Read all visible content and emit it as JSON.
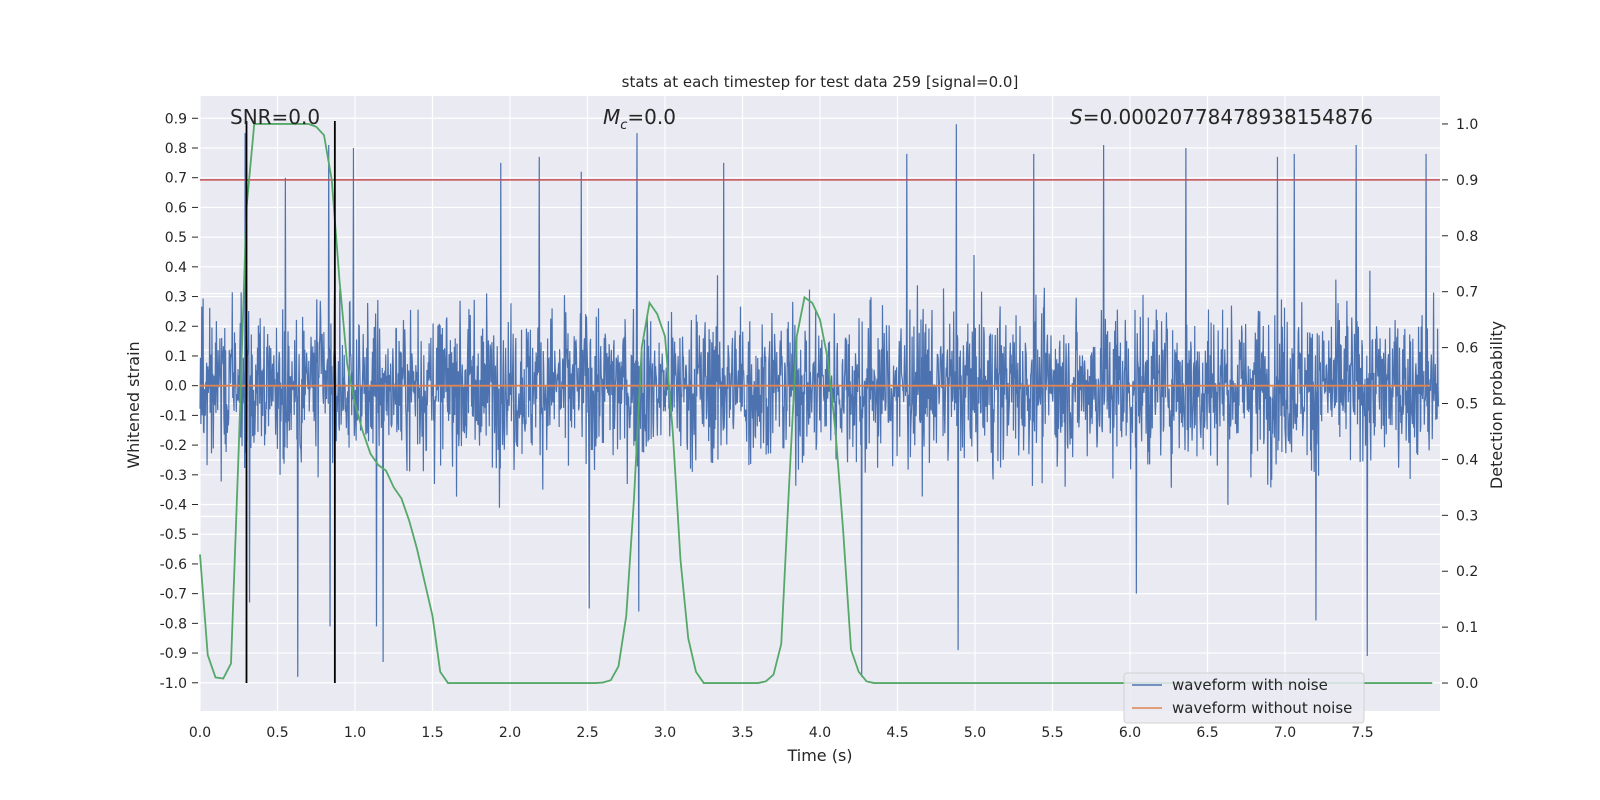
{
  "chart_data": {
    "type": "line",
    "title": "stats at each timestep for test data 259 [signal=0.0]",
    "xlabel": "Time (s)",
    "ylabel_left": "Whitened strain",
    "ylabel_right": "Detection probability",
    "xlim": [
      0.0,
      8.0
    ],
    "ylim_left": [
      -1.095,
      0.975
    ],
    "ylim_right": [
      -0.05,
      1.05
    ],
    "x_ticks": [
      "0.0",
      "0.5",
      "1.0",
      "1.5",
      "2.0",
      "2.5",
      "3.0",
      "3.5",
      "4.0",
      "4.5",
      "5.0",
      "5.5",
      "6.0",
      "6.5",
      "7.0",
      "7.5"
    ],
    "y_ticks_left": [
      "0.9",
      "0.8",
      "0.7",
      "0.6",
      "0.5",
      "0.4",
      "0.3",
      "0.2",
      "0.1",
      "0.0",
      "-0.1",
      "-0.2",
      "-0.3",
      "-0.4",
      "-0.5",
      "-0.6",
      "-0.7",
      "-0.8",
      "-0.9",
      "-1.0"
    ],
    "y_ticks_right": [
      "1.0",
      "0.9",
      "0.8",
      "0.7",
      "0.6",
      "0.5",
      "0.4",
      "0.3",
      "0.2",
      "0.1",
      "0.0"
    ],
    "annotations": {
      "snr": "SNR=0.0",
      "mc": "=0.0",
      "mc_symbol": "M",
      "mc_subscript": "c",
      "s": "=0.00020778478938154876",
      "s_symbol": "S"
    },
    "threshold": {
      "axis": "right",
      "value": 0.9,
      "color": "#c44e52"
    },
    "vertical_lines": [
      0.3,
      0.87
    ],
    "horizontal_white_lines_left_axis": [
      0.31,
      0.12,
      -0.06,
      -0.25,
      -0.44
    ],
    "legend": {
      "location": "lower right",
      "entries": [
        {
          "label": "waveform with noise",
          "color": "#4c72b0"
        },
        {
          "label": "waveform without noise",
          "color": "#dd8452"
        }
      ]
    },
    "series": [
      {
        "name": "waveform with noise",
        "axis": "left",
        "color": "#4c72b0",
        "x_range": [
          0.0,
          7.99
        ],
        "description": "dense whitened noise roughly within -0.6 to 0.6 with spikes",
        "spike_highs": [
          [
            0.29,
            0.85
          ],
          [
            0.55,
            0.7
          ],
          [
            0.83,
            0.81
          ],
          [
            0.99,
            0.8
          ],
          [
            1.94,
            0.75
          ],
          [
            2.19,
            0.77
          ],
          [
            2.46,
            0.72
          ],
          [
            2.82,
            0.85
          ],
          [
            3.38,
            0.75
          ],
          [
            4.56,
            0.78
          ],
          [
            4.88,
            0.88
          ],
          [
            5.38,
            0.78
          ],
          [
            5.83,
            0.81
          ],
          [
            6.36,
            0.8
          ],
          [
            6.95,
            0.77
          ],
          [
            7.06,
            0.78
          ],
          [
            7.46,
            0.81
          ],
          [
            7.91,
            0.78
          ]
        ],
        "spike_lows": [
          [
            0.32,
            -0.73
          ],
          [
            0.63,
            -0.98
          ],
          [
            0.84,
            -0.81
          ],
          [
            1.18,
            -0.93
          ],
          [
            1.14,
            -0.81
          ],
          [
            2.51,
            -0.75
          ],
          [
            2.83,
            -0.76
          ],
          [
            4.27,
            -0.98
          ],
          [
            4.89,
            -0.89
          ],
          [
            6.04,
            -0.7
          ],
          [
            7.2,
            -0.79
          ],
          [
            7.53,
            -0.91
          ]
        ]
      },
      {
        "name": "waveform without noise",
        "axis": "left",
        "color": "#dd8452",
        "x": [
          0.0,
          8.0
        ],
        "y": [
          0.0,
          0.0
        ]
      },
      {
        "name": "detection probability",
        "axis": "right",
        "color": "#55a868",
        "x": [
          0.0,
          0.05,
          0.1,
          0.15,
          0.2,
          0.25,
          0.3,
          0.35,
          0.4,
          0.45,
          0.5,
          0.55,
          0.6,
          0.65,
          0.7,
          0.75,
          0.8,
          0.85,
          0.9,
          0.95,
          1.0,
          1.05,
          1.1,
          1.15,
          1.2,
          1.25,
          1.3,
          1.35,
          1.4,
          1.45,
          1.5,
          1.55,
          1.6,
          2.0,
          2.4,
          2.55,
          2.6,
          2.65,
          2.7,
          2.75,
          2.8,
          2.85,
          2.9,
          2.95,
          3.0,
          3.05,
          3.1,
          3.15,
          3.2,
          3.25,
          3.3,
          3.5,
          3.6,
          3.65,
          3.7,
          3.75,
          3.8,
          3.85,
          3.9,
          3.95,
          4.0,
          4.05,
          4.1,
          4.15,
          4.2,
          4.25,
          4.3,
          4.35,
          4.4,
          5.0,
          6.0,
          7.0,
          7.95
        ],
        "y": [
          0.23,
          0.05,
          0.01,
          0.008,
          0.035,
          0.42,
          0.85,
          1.0,
          1.0,
          1.0,
          1.0,
          1.0,
          1.0,
          1.0,
          1.0,
          0.995,
          0.98,
          0.9,
          0.72,
          0.57,
          0.5,
          0.45,
          0.41,
          0.39,
          0.38,
          0.35,
          0.33,
          0.29,
          0.24,
          0.18,
          0.12,
          0.02,
          0.0,
          0.0,
          0.0,
          0.0,
          0.001,
          0.005,
          0.03,
          0.12,
          0.33,
          0.6,
          0.68,
          0.66,
          0.62,
          0.45,
          0.22,
          0.08,
          0.02,
          0.0,
          0.0,
          0.0,
          0.0,
          0.003,
          0.015,
          0.07,
          0.35,
          0.62,
          0.69,
          0.68,
          0.65,
          0.58,
          0.45,
          0.27,
          0.06,
          0.02,
          0.003,
          0.0,
          0.0,
          0.0,
          0.0,
          0.0,
          0.0
        ]
      }
    ],
    "colors": {
      "plot_background": "#eaeaf2",
      "grid": "#ffffff",
      "vertical_lines": "#000000"
    }
  }
}
